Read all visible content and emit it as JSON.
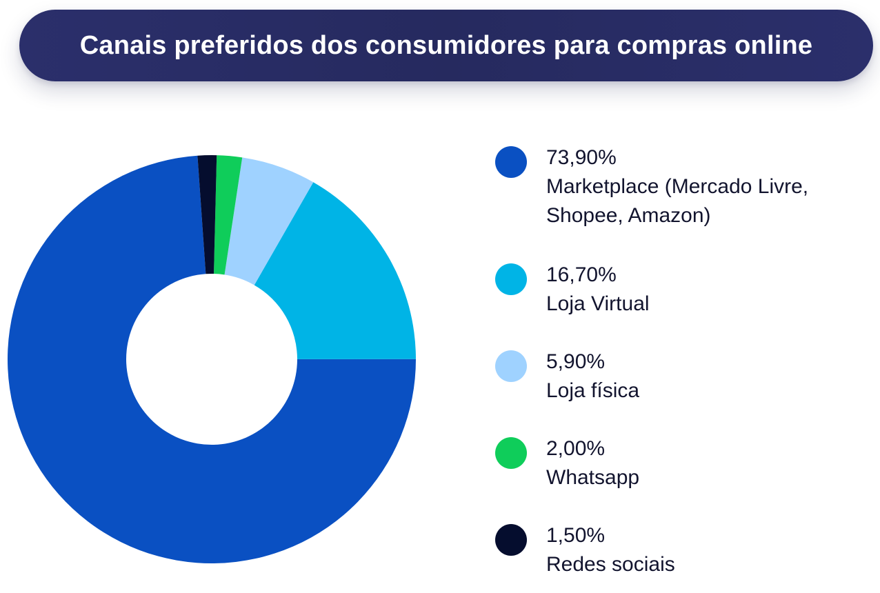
{
  "header": {
    "title": "Canais preferidos dos consumidores para compras online"
  },
  "chart_data": {
    "type": "pie",
    "style": "donut",
    "title": "Canais preferidos dos consumidores para compras online",
    "legend_placement": "right",
    "slices": [
      {
        "label": "Marketplace (Mercado Livre, Shopee, Amazon)",
        "display_value": "73,90%",
        "value": 73.9,
        "color": "#0a50c2"
      },
      {
        "label": "Loja Virtual",
        "display_value": "16,70%",
        "value": 16.7,
        "color": "#00b4e6"
      },
      {
        "label": "Loja física",
        "display_value": "5,90%",
        "value": 5.9,
        "color": "#9fd2ff"
      },
      {
        "label": "Whatsapp",
        "display_value": "2,00%",
        "value": 2.0,
        "color": "#0fcd5a"
      },
      {
        "label": "Redes sociais",
        "display_value": "1,50%",
        "value": 1.5,
        "color": "#050d2e"
      }
    ]
  }
}
